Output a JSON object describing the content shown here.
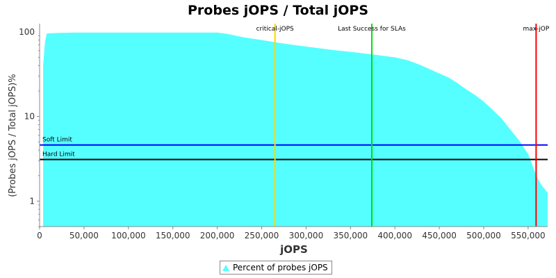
{
  "chart_data": {
    "type": "area",
    "title": "Probes jOPS / Total jOPS",
    "xlabel": "jOPS",
    "ylabel": "(Probes jOPS / Total jOPS)%",
    "xlim": [
      0,
      572000
    ],
    "ylim": [
      0.5,
      125
    ],
    "yscale": "log",
    "grid": false,
    "x_ticks": [
      0,
      50000,
      100000,
      150000,
      200000,
      250000,
      300000,
      350000,
      400000,
      450000,
      500000,
      550000
    ],
    "x_tick_labels": [
      "0",
      "50,000",
      "100,000",
      "150,000",
      "200,000",
      "250,000",
      "300,000",
      "350,000",
      "400,000",
      "450,000",
      "500,000",
      "550,000"
    ],
    "y_ticks": [
      1,
      10,
      100
    ],
    "y_tick_labels": [
      "1",
      "10",
      "100"
    ],
    "series": [
      {
        "name": "Percent of probes jOPS",
        "color": "#55FFFF",
        "x": [
          4000,
          6000,
          8000,
          10000,
          20000,
          40000,
          100000,
          150000,
          200000,
          210000,
          230000,
          250000,
          270000,
          290000,
          310000,
          330000,
          350000,
          375000,
          400000,
          415000,
          430000,
          445000,
          460000,
          470000,
          480000,
          490000,
          500000,
          510000,
          520000,
          530000,
          540000,
          550000,
          555000,
          560000,
          565000,
          572000
        ],
        "y": [
          40,
          75,
          95,
          96,
          97,
          98,
          98,
          98,
          98,
          95,
          86,
          80,
          74,
          69,
          65,
          61,
          58,
          54,
          50,
          46,
          40,
          34,
          29,
          25,
          21,
          18,
          15,
          12,
          9.5,
          7,
          5.2,
          3.6,
          2.6,
          1.9,
          1.55,
          1.25
        ]
      }
    ],
    "horizontal_lines": [
      {
        "label": "Soft Limit",
        "y": 4.6,
        "color": "#0000FF"
      },
      {
        "label": "Hard Limit",
        "y": 3.1,
        "color": "#000000"
      }
    ],
    "vertical_lines": [
      {
        "label": "critical-jOPS",
        "x": 265000,
        "color": "#FFD700"
      },
      {
        "label": "Last Success for SLAs",
        "x": 374000,
        "color": "#00E000"
      },
      {
        "label": "max-jOP",
        "x": 559000,
        "color": "#FF0000"
      }
    ],
    "legend": {
      "position": "bottom",
      "label": "Percent of probes jOPS"
    }
  }
}
